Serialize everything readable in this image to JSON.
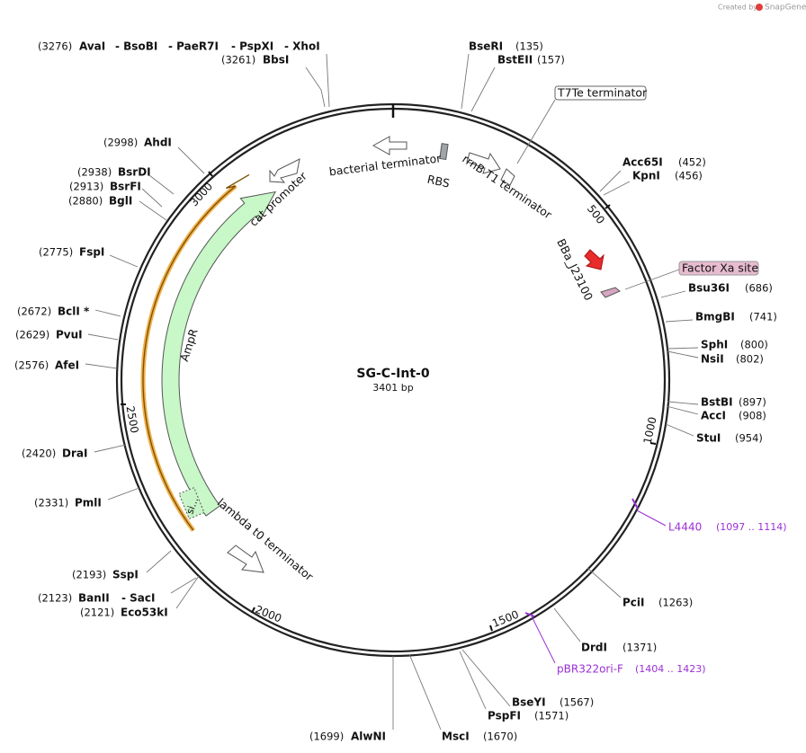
{
  "header": {
    "created_by": "Created by",
    "brand": "SnapGene"
  },
  "plasmid": {
    "name": "SG-C-Int-0",
    "size": "3401 bp"
  },
  "sites": [
    {
      "names": [
        "AvaI",
        "- BsoBI",
        "- PaeR7I",
        "- PspXI",
        "- XhoI"
      ],
      "position": "(3276)"
    },
    {
      "names": [
        "BbsI"
      ],
      "position": "(3261)"
    },
    {
      "names": [
        "BseRI"
      ],
      "position": "(135)"
    },
    {
      "names": [
        "BstEII"
      ],
      "position": "(157)"
    },
    {
      "names": [
        "Acc65I"
      ],
      "position": "(452)"
    },
    {
      "names": [
        "KpnI"
      ],
      "position": "(456)"
    },
    {
      "names": [
        "Bsu36I"
      ],
      "position": "(686)"
    },
    {
      "names": [
        "BmgBI"
      ],
      "position": "(741)"
    },
    {
      "names": [
        "SphI"
      ],
      "position": "(800)"
    },
    {
      "names": [
        "NsiI"
      ],
      "position": "(802)"
    },
    {
      "names": [
        "BstBI"
      ],
      "position": "(897)"
    },
    {
      "names": [
        "AccI"
      ],
      "position": "(908)"
    },
    {
      "names": [
        "StuI"
      ],
      "position": "(954)"
    },
    {
      "names": [
        "PciI"
      ],
      "position": "(1263)"
    },
    {
      "names": [
        "DrdI"
      ],
      "position": "(1371)"
    },
    {
      "names": [
        "BseYI"
      ],
      "position": "(1567)"
    },
    {
      "names": [
        "PspFI"
      ],
      "position": "(1571)"
    },
    {
      "names": [
        "MscI"
      ],
      "position": "(1670)"
    },
    {
      "names": [
        "AlwNI"
      ],
      "position": "(1699)"
    },
    {
      "names": [
        "BanII",
        "- SacI"
      ],
      "position": "(2123)"
    },
    {
      "names": [
        "Eco53kI"
      ],
      "position": "(2121)"
    },
    {
      "names": [
        "SspI"
      ],
      "position": "(2193)"
    },
    {
      "names": [
        "PmlI"
      ],
      "position": "(2331)"
    },
    {
      "names": [
        "DraI"
      ],
      "position": "(2420)"
    },
    {
      "names": [
        "AfeI"
      ],
      "position": "(2576)"
    },
    {
      "names": [
        "PvuI"
      ],
      "position": "(2629)"
    },
    {
      "names": [
        "BclI *"
      ],
      "position": "(2672)"
    },
    {
      "names": [
        "FspI"
      ],
      "position": "(2775)"
    },
    {
      "names": [
        "BglI"
      ],
      "position": "(2880)"
    },
    {
      "names": [
        "BsrFI"
      ],
      "position": "(2913)"
    },
    {
      "names": [
        "BsrDI"
      ],
      "position": "(2938)"
    },
    {
      "names": [
        "AhdI"
      ],
      "position": "(2998)"
    }
  ],
  "features": {
    "t7te": "T7Te terminator",
    "factor_xa": "Factor Xa site",
    "bacterial": "bacterial terminator",
    "rbs": "RBS",
    "rrnb": "rrnB T1 terminator",
    "bba": "BBa_J23100",
    "cat": "cat promoter",
    "ampr": "AmpR",
    "lambda": "lambda t0 terminator",
    "si": "si..."
  },
  "primers": [
    {
      "name": "L4440",
      "range": "(1097 .. 1114)"
    },
    {
      "name": "pBR322ori-F",
      "range": "(1404 .. 1423)"
    }
  ],
  "ticks": [
    "500",
    "1000",
    "1500",
    "2000",
    "2500",
    "3000"
  ]
}
